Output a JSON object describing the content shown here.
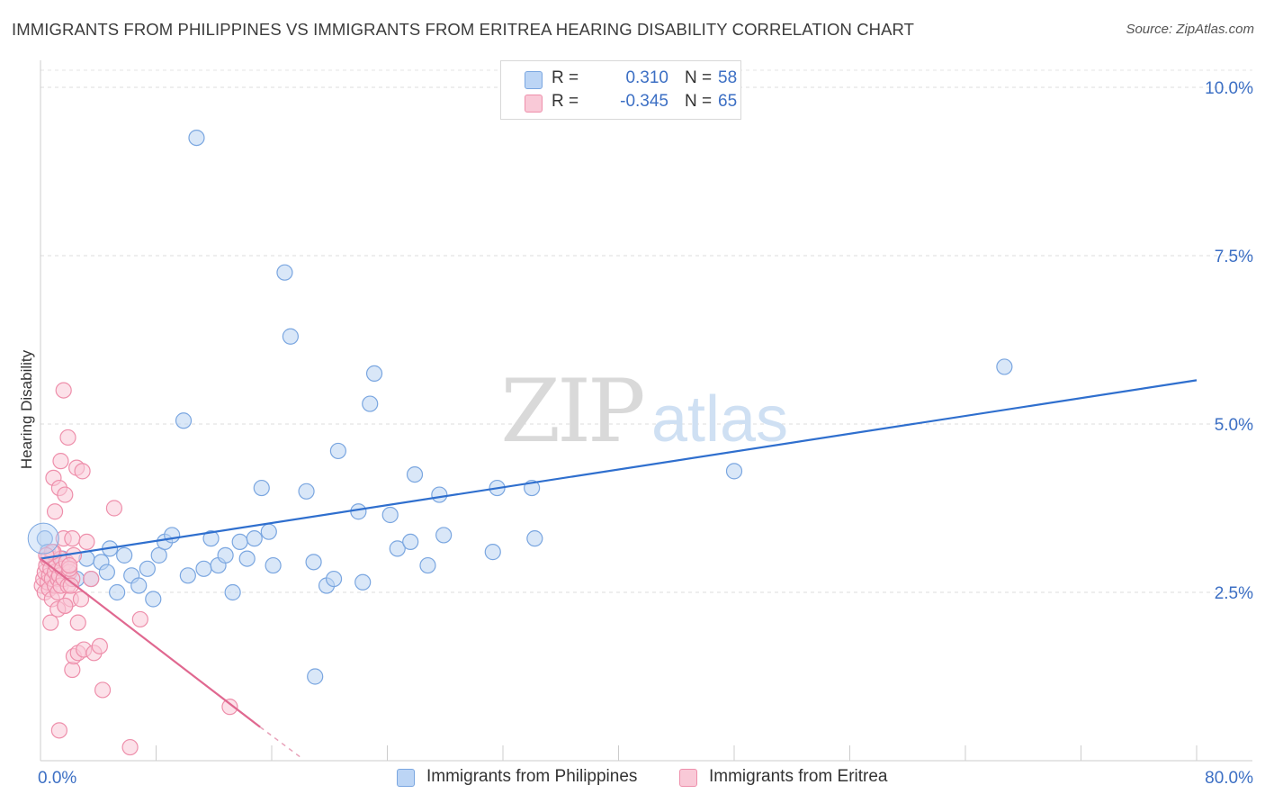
{
  "title": "IMMIGRANTS FROM PHILIPPINES VS IMMIGRANTS FROM ERITREA HEARING DISABILITY CORRELATION CHART",
  "source": "Source: ZipAtlas.com",
  "watermark": {
    "zip": "ZIP",
    "atlas": "atlas"
  },
  "legend": {
    "rows": [
      {
        "r_label": "R =",
        "r_value": "0.310",
        "n_label": "N =",
        "n_value": "58",
        "color": "#a9c8f0",
        "border": "#7aa6e0"
      },
      {
        "r_label": "R =",
        "r_value": "-0.345",
        "n_label": "N =",
        "n_value": "65",
        "color": "#f7bccd",
        "border": "#ee8fab"
      }
    ]
  },
  "bottom_legend": [
    {
      "label": "Immigrants from Philippines",
      "color": "#b9d3f3",
      "border": "#7aa6e0"
    },
    {
      "label": "Immigrants from Eritrea",
      "color": "#f9c9d7",
      "border": "#ee8fab"
    }
  ],
  "chart_data": {
    "type": "scatter",
    "title": "IMMIGRANTS FROM PHILIPPINES VS IMMIGRANTS FROM ERITREA HEARING DISABILITY CORRELATION CHART",
    "xlabel": "",
    "ylabel": "Hearing Disability",
    "xlim": [
      0,
      80
    ],
    "ylim": [
      0,
      10.5
    ],
    "x_tick_labels": [
      "0.0%",
      "80.0%"
    ],
    "y_ticks": [
      2.5,
      5.0,
      7.5,
      10.0
    ],
    "y_tick_labels": [
      "2.5%",
      "5.0%",
      "7.5%",
      "10.0%"
    ],
    "grid": true,
    "legend_position": "top-center",
    "series": [
      {
        "name": "Immigrants from Philippines",
        "color": "#7aa6e0",
        "fill": "#b9d3f3",
        "r": 0.31,
        "n": 58,
        "trend": {
          "x": [
            0,
            80
          ],
          "y": [
            3.0,
            5.65
          ],
          "dashed_to": null
        },
        "points": [
          [
            0.3,
            3.3
          ],
          [
            0.5,
            3.1
          ],
          [
            0.8,
            3.0
          ],
          [
            1.0,
            2.9
          ],
          [
            1.5,
            3.0
          ],
          [
            2.0,
            2.8
          ],
          [
            2.5,
            2.7
          ],
          [
            3.2,
            3.0
          ],
          [
            3.5,
            2.7
          ],
          [
            4.2,
            2.95
          ],
          [
            4.6,
            2.8
          ],
          [
            4.8,
            3.15
          ],
          [
            5.3,
            2.5
          ],
          [
            5.8,
            3.05
          ],
          [
            6.3,
            2.75
          ],
          [
            6.8,
            2.6
          ],
          [
            7.4,
            2.85
          ],
          [
            7.8,
            2.4
          ],
          [
            8.2,
            3.05
          ],
          [
            8.6,
            3.25
          ],
          [
            9.1,
            3.35
          ],
          [
            9.9,
            5.05
          ],
          [
            10.2,
            2.75
          ],
          [
            10.8,
            9.25
          ],
          [
            11.3,
            2.85
          ],
          [
            11.8,
            3.3
          ],
          [
            12.3,
            2.9
          ],
          [
            12.8,
            3.05
          ],
          [
            13.3,
            2.5
          ],
          [
            13.8,
            3.25
          ],
          [
            14.3,
            3.0
          ],
          [
            14.8,
            3.3
          ],
          [
            15.3,
            4.05
          ],
          [
            15.8,
            3.4
          ],
          [
            16.1,
            2.9
          ],
          [
            16.9,
            7.25
          ],
          [
            17.3,
            6.3
          ],
          [
            18.4,
            4.0
          ],
          [
            18.9,
            2.95
          ],
          [
            19.8,
            2.6
          ],
          [
            20.3,
            2.7
          ],
          [
            20.6,
            4.6
          ],
          [
            22.0,
            3.7
          ],
          [
            22.3,
            2.65
          ],
          [
            22.8,
            5.3
          ],
          [
            23.1,
            5.75
          ],
          [
            24.2,
            3.65
          ],
          [
            24.7,
            3.15
          ],
          [
            25.6,
            3.25
          ],
          [
            25.9,
            4.25
          ],
          [
            26.8,
            2.9
          ],
          [
            27.6,
            3.95
          ],
          [
            27.9,
            3.35
          ],
          [
            31.3,
            3.1
          ],
          [
            31.6,
            4.05
          ],
          [
            34.0,
            4.05
          ],
          [
            34.2,
            3.3
          ],
          [
            48.0,
            4.3
          ],
          [
            66.7,
            5.85
          ],
          [
            19.0,
            1.25
          ]
        ]
      },
      {
        "name": "Immigrants from Eritrea",
        "color": "#ee8fab",
        "fill": "#f9c9d7",
        "r": -0.345,
        "n": 65,
        "trend": {
          "x": [
            0,
            15.2
          ],
          "y": [
            3.0,
            0.5
          ],
          "dashed_x": [
            15.2,
            18.0
          ],
          "dashed_y": [
            0.5,
            0.05
          ]
        },
        "points": [
          [
            0.1,
            2.6
          ],
          [
            0.2,
            2.7
          ],
          [
            0.3,
            2.8
          ],
          [
            0.3,
            2.5
          ],
          [
            0.4,
            2.9
          ],
          [
            0.5,
            2.65
          ],
          [
            0.5,
            3.0
          ],
          [
            0.6,
            2.75
          ],
          [
            0.6,
            2.55
          ],
          [
            0.7,
            2.85
          ],
          [
            0.8,
            2.7
          ],
          [
            0.8,
            2.4
          ],
          [
            0.9,
            3.1
          ],
          [
            1.0,
            2.6
          ],
          [
            1.0,
            2.8
          ],
          [
            1.1,
            2.9
          ],
          [
            1.2,
            2.7
          ],
          [
            1.2,
            2.5
          ],
          [
            1.3,
            2.75
          ],
          [
            1.4,
            3.0
          ],
          [
            1.4,
            2.6
          ],
          [
            1.5,
            2.85
          ],
          [
            1.6,
            2.7
          ],
          [
            1.7,
            2.3
          ],
          [
            1.8,
            2.95
          ],
          [
            1.9,
            2.6
          ],
          [
            2.0,
            2.8
          ],
          [
            2.1,
            2.4
          ],
          [
            2.2,
            2.7
          ],
          [
            2.3,
            3.05
          ],
          [
            0.7,
            2.05
          ],
          [
            0.8,
            3.1
          ],
          [
            0.9,
            4.2
          ],
          [
            1.0,
            3.7
          ],
          [
            1.2,
            2.25
          ],
          [
            1.3,
            4.05
          ],
          [
            1.4,
            4.45
          ],
          [
            1.6,
            5.5
          ],
          [
            1.6,
            3.3
          ],
          [
            1.7,
            2.3
          ],
          [
            1.7,
            3.95
          ],
          [
            1.9,
            4.8
          ],
          [
            2.0,
            2.85
          ],
          [
            2.1,
            2.6
          ],
          [
            2.2,
            3.3
          ],
          [
            2.2,
            1.35
          ],
          [
            2.3,
            1.55
          ],
          [
            2.5,
            4.35
          ],
          [
            2.6,
            1.6
          ],
          [
            2.6,
            2.05
          ],
          [
            2.8,
            2.4
          ],
          [
            2.9,
            4.3
          ],
          [
            3.0,
            1.65
          ],
          [
            3.2,
            3.25
          ],
          [
            3.5,
            2.7
          ],
          [
            3.7,
            1.6
          ],
          [
            4.1,
            1.7
          ],
          [
            4.3,
            1.05
          ],
          [
            5.1,
            3.75
          ],
          [
            6.2,
            0.2
          ],
          [
            6.9,
            2.1
          ],
          [
            13.1,
            0.8
          ],
          [
            1.3,
            0.45
          ],
          [
            2.0,
            2.9
          ],
          [
            0.4,
            3.05
          ]
        ]
      }
    ]
  }
}
